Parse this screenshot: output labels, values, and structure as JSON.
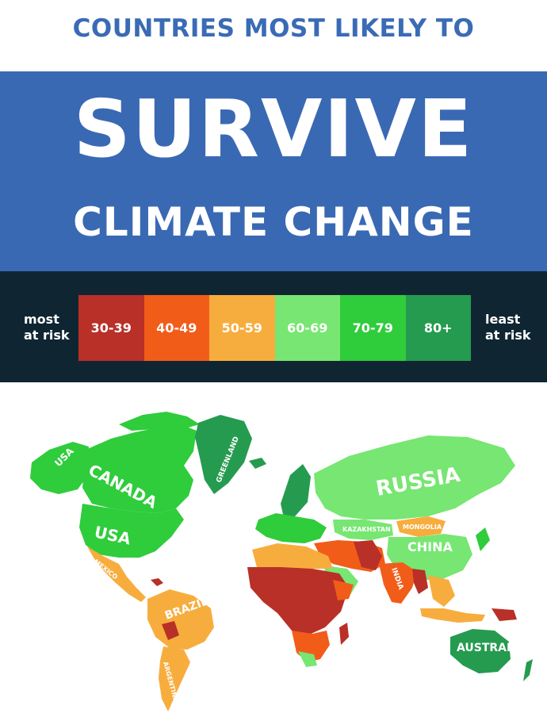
{
  "header": {
    "top_line": "COUNTRIES MOST LIKELY TO",
    "banner_big": "SURVIVE",
    "banner_sub": "CLIMATE CHANGE"
  },
  "legend": {
    "left_label": "most\nat risk",
    "right_label": "least\nat risk",
    "bins": [
      {
        "label": "30-39",
        "color": "#b83027"
      },
      {
        "label": "40-49",
        "color": "#f25c19"
      },
      {
        "label": "50-59",
        "color": "#f7ad3e"
      },
      {
        "label": "60-69",
        "color": "#77e672"
      },
      {
        "label": "70-79",
        "color": "#2fcc3c"
      },
      {
        "label": "80+",
        "color": "#259b4f"
      }
    ]
  },
  "map_labels": {
    "usa_alaska": "USA",
    "canada": "CANADA",
    "usa": "USA",
    "greenland": "GREENLAND",
    "russia": "RUSSIA",
    "kazakhstan": "KAZAKHSTAN",
    "mongolia": "MONGOLIA",
    "china": "CHINA",
    "india": "INDIA",
    "mexico": "MEXICO",
    "brazil": "BRAZIL",
    "argentina": "ARGENTINA",
    "australia": "AUSTRALIA"
  }
}
